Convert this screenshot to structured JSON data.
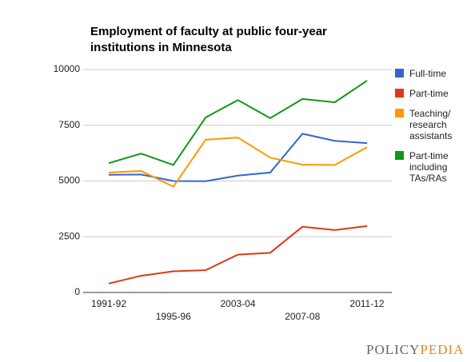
{
  "chart_data": {
    "type": "line",
    "title": [
      "Employment of faculty at public four-year",
      "institutions in Minnesota"
    ],
    "categories": [
      "1991-92",
      null,
      "1995-96",
      null,
      "2003-04",
      null,
      "2007-08",
      null,
      "2011-12"
    ],
    "series": [
      {
        "name": "Full-time",
        "color": "#3366cc",
        "values": [
          5280,
          5290,
          5000,
          4990,
          5240,
          5380,
          7120,
          6800,
          6700
        ]
      },
      {
        "name": "Part-time",
        "color": "#dc3912",
        "values": [
          400,
          750,
          950,
          1000,
          1700,
          1780,
          2950,
          2800,
          2980
        ]
      },
      {
        "name": "Teaching/ research assistants",
        "color": "#ff9900",
        "values": [
          5380,
          5450,
          4750,
          6850,
          6950,
          6050,
          5730,
          5720,
          6520
        ]
      },
      {
        "name": "Part-time including TAs/RAs",
        "color": "#109618",
        "values": [
          5800,
          6230,
          5720,
          7850,
          8630,
          7820,
          8680,
          8530,
          9500
        ]
      }
    ],
    "ylim": [
      0,
      10000
    ],
    "yticks": [
      0,
      2500,
      5000,
      7500,
      10000
    ],
    "grid": true,
    "legend": "right"
  },
  "logo": [
    "POLICY",
    "PEDIA"
  ]
}
